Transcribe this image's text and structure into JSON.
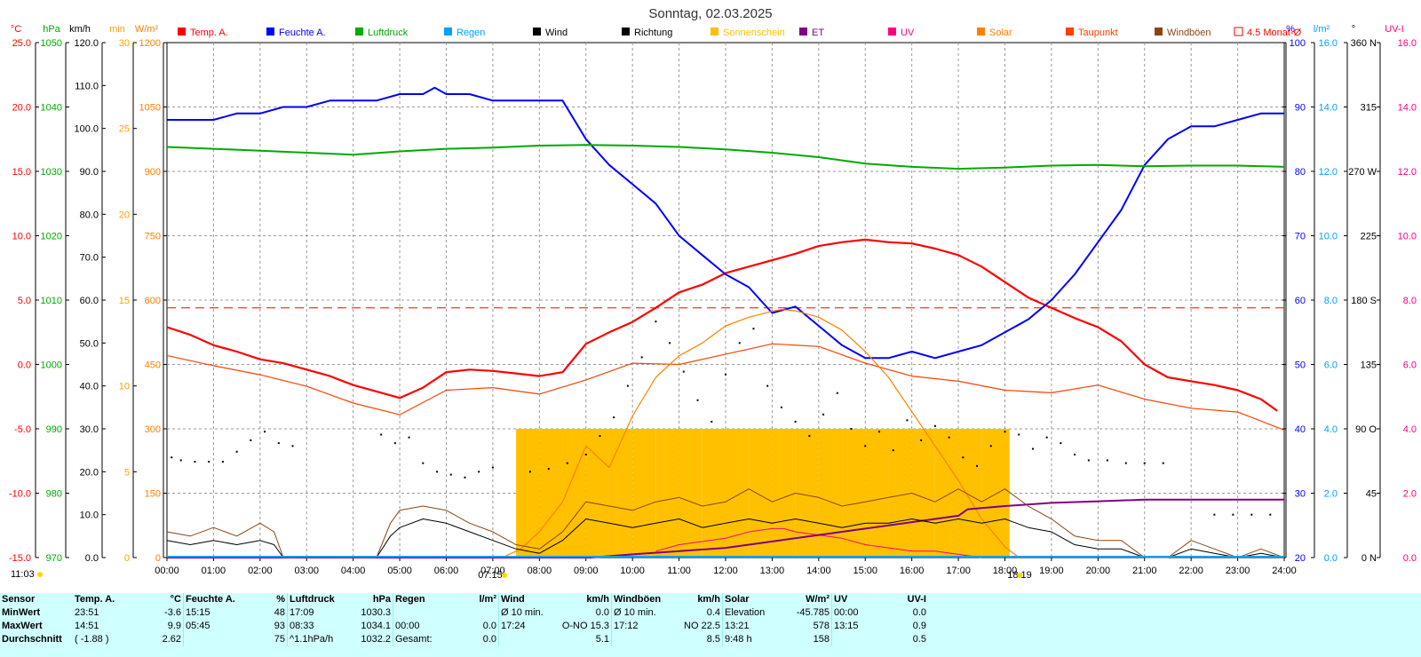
{
  "title": "Sonntag, 02.03.2025",
  "unit_headers": {
    "temp": "°C",
    "pressure": "hPa",
    "wind": "km/h",
    "sun_min": "min",
    "solar": "W/m²",
    "humidity": "%",
    "rain": "l/m²",
    "direction": "°",
    "uv": "UV-I"
  },
  "legend": [
    {
      "label": "Temp. A.",
      "color": "#ff0000"
    },
    {
      "label": "Feuchte A.",
      "color": "#0000ff"
    },
    {
      "label": "Luftdruck",
      "color": "#00aa00"
    },
    {
      "label": "Regen",
      "color": "#00a0ff"
    },
    {
      "label": "Wind",
      "color": "#000000"
    },
    {
      "label": "Richtung",
      "color": "#000000"
    },
    {
      "label": "Sonnenschein",
      "color": "#ffbf00"
    },
    {
      "label": "ET",
      "color": "#800080"
    },
    {
      "label": "UV",
      "color": "#ff0080"
    },
    {
      "label": "Solar",
      "color": "#ff8000"
    },
    {
      "label": "Taupunkt",
      "color": "#ff4000"
    },
    {
      "label": "Windböen",
      "color": "#8b4513"
    },
    {
      "label": "4.5 Monat-Ø",
      "color": "#ff0000"
    }
  ],
  "axes": {
    "temp": {
      "color": "#ff0000",
      "ticks": [
        "25.0",
        "20.0",
        "15.0",
        "10.0",
        "5.0",
        "0.0",
        "-5.0",
        "-10.0",
        "-15.0"
      ]
    },
    "pressure": {
      "color": "#00aa00",
      "ticks": [
        "1050",
        "1040",
        "1030",
        "1020",
        "1010",
        "1000",
        "990",
        "980",
        "970"
      ]
    },
    "wind": {
      "color": "#000000",
      "ticks": [
        "120.0",
        "110.0",
        "100.0",
        "90.0",
        "80.0",
        "70.0",
        "60.0",
        "50.0",
        "40.0",
        "30.0",
        "20.0",
        "10.0",
        "0.0"
      ]
    },
    "sun_min": {
      "color": "#ffa000",
      "ticks": [
        "30",
        "25",
        "20",
        "15",
        "10",
        "5",
        "0"
      ]
    },
    "solar": {
      "color": "#ff8000",
      "ticks": [
        "1200",
        "1050",
        "900",
        "750",
        "600",
        "450",
        "300",
        "150",
        "0"
      ]
    },
    "humidity": {
      "color": "#0000ff",
      "ticks": [
        "100",
        "90",
        "80",
        "70",
        "60",
        "50",
        "40",
        "30",
        "20"
      ]
    },
    "rain": {
      "color": "#00a0ff",
      "ticks": [
        "16.0",
        "14.0",
        "12.0",
        "10.0",
        "8.0",
        "6.0",
        "4.0",
        "2.0",
        "0.0"
      ]
    },
    "direction": {
      "color": "#000000",
      "ticks": [
        "360 N",
        "315",
        "270 W",
        "225",
        "180 S",
        "135",
        "90 O",
        "45",
        "0 N"
      ]
    },
    "uv": {
      "color": "#ff0080",
      "ticks": [
        "16.0",
        "14.0",
        "12.0",
        "10.0",
        "8.0",
        "6.0",
        "4.0",
        "2.0",
        "0.0"
      ]
    }
  },
  "x_ticks": [
    "00:00",
    "01:00",
    "02:00",
    "03:00",
    "04:00",
    "05:00",
    "06:00",
    "07:00",
    "08:00",
    "09:00",
    "10:00",
    "11:00",
    "12:00",
    "13:00",
    "14:00",
    "15:00",
    "16:00",
    "17:00",
    "18:00",
    "19:00",
    "20:00",
    "21:00",
    "22:00",
    "23:00",
    "24:00"
  ],
  "time_markers": {
    "now": "11:03",
    "sunrise": "07:15",
    "sunset": "18:19"
  },
  "chart_data": {
    "type": "line",
    "title": "Sonntag, 02.03.2025",
    "x_unit": "hours",
    "xlim": [
      0,
      24
    ],
    "series": [
      {
        "name": "Temp. A.",
        "axis": "temp",
        "color": "#ff0000",
        "x": [
          0,
          0.5,
          1,
          1.5,
          2,
          2.5,
          3,
          3.5,
          4,
          4.5,
          5,
          5.5,
          6,
          6.5,
          7,
          7.5,
          8,
          8.5,
          9,
          9.5,
          10,
          10.5,
          11,
          11.5,
          12,
          12.5,
          13,
          13.5,
          14,
          14.5,
          15,
          15.5,
          16,
          16.5,
          17,
          17.5,
          18,
          18.5,
          19,
          19.5,
          20,
          20.5,
          21,
          21.5,
          22,
          22.5,
          23,
          23.5,
          23.85
        ],
        "y": [
          2.9,
          2.3,
          1.5,
          1.0,
          0.4,
          0.1,
          -0.4,
          -0.9,
          -1.6,
          -2.1,
          -2.6,
          -1.8,
          -0.6,
          -0.4,
          -0.5,
          -0.7,
          -0.9,
          -0.6,
          1.6,
          2.5,
          3.3,
          4.4,
          5.6,
          6.2,
          7.1,
          7.6,
          8.1,
          8.6,
          9.2,
          9.5,
          9.7,
          9.5,
          9.4,
          9.0,
          8.5,
          7.6,
          6.4,
          5.2,
          4.4,
          3.6,
          2.9,
          1.8,
          0.0,
          -1.0,
          -1.3,
          -1.6,
          -2.0,
          -2.7,
          -3.6
        ]
      },
      {
        "name": "Feuchte A.",
        "axis": "humidity",
        "color": "#0000ff",
        "x": [
          0,
          0.5,
          1,
          1.5,
          2,
          2.5,
          3,
          3.5,
          4,
          4.5,
          5,
          5.5,
          5.75,
          6,
          6.5,
          7,
          7.5,
          8,
          8.5,
          9,
          9.5,
          10,
          10.5,
          11,
          11.5,
          12,
          12.5,
          13,
          13.5,
          14,
          14.5,
          15,
          15.5,
          16,
          16.5,
          17,
          17.5,
          18,
          18.5,
          19,
          19.5,
          20,
          20.5,
          21,
          21.5,
          22,
          22.5,
          23,
          23.5,
          24
        ],
        "y": [
          88,
          88,
          88,
          89,
          89,
          90,
          90,
          91,
          91,
          91,
          92,
          92,
          93,
          92,
          92,
          91,
          91,
          91,
          91,
          85,
          81,
          78,
          75,
          70,
          67,
          64,
          62,
          58,
          59,
          56,
          53,
          51,
          51,
          52,
          51,
          52,
          53,
          55,
          57,
          60,
          64,
          69,
          74,
          81,
          85,
          87,
          87,
          88,
          89,
          89
        ]
      },
      {
        "name": "Luftdruck",
        "axis": "pressure",
        "color": "#00aa00",
        "x": [
          0,
          1,
          2,
          3,
          4,
          5,
          6,
          7,
          8,
          9,
          10,
          11,
          12,
          13,
          14,
          15,
          16,
          17,
          18,
          19,
          20,
          21,
          22,
          23,
          24
        ],
        "y": [
          1033.8,
          1033.5,
          1033.2,
          1032.9,
          1032.6,
          1033.1,
          1033.5,
          1033.7,
          1034.0,
          1034.1,
          1034.0,
          1033.8,
          1033.4,
          1032.9,
          1032.2,
          1031.2,
          1030.7,
          1030.4,
          1030.6,
          1030.9,
          1031.0,
          1030.8,
          1030.9,
          1030.9,
          1030.7
        ]
      },
      {
        "name": "Taupunkt",
        "axis": "temp",
        "color": "#ff4000",
        "x": [
          0,
          1,
          2,
          3,
          4,
          5,
          6,
          7,
          8,
          9,
          10,
          11,
          12,
          13,
          14,
          15,
          16,
          17,
          18,
          19,
          20,
          21,
          22,
          23,
          24
        ],
        "y": [
          0.7,
          -0.1,
          -0.8,
          -1.7,
          -3.0,
          -3.9,
          -2.0,
          -1.8,
          -2.3,
          -1.2,
          0.1,
          0.0,
          0.8,
          1.6,
          1.4,
          0.1,
          -0.9,
          -1.3,
          -2.0,
          -2.2,
          -1.6,
          -2.7,
          -3.4,
          -3.7,
          -5.1
        ]
      },
      {
        "name": "Solar",
        "axis": "solar",
        "color": "#ff8000",
        "x": [
          7.2,
          7.6,
          8,
          8.5,
          9,
          9.5,
          10,
          10.5,
          11,
          11.5,
          12,
          12.5,
          13,
          13.2,
          13.5,
          14,
          14.5,
          15,
          15.5,
          16,
          16.5,
          17,
          17.5,
          18,
          18.3
        ],
        "y": [
          0,
          20,
          60,
          130,
          260,
          210,
          330,
          420,
          470,
          500,
          540,
          560,
          574,
          578,
          575,
          560,
          530,
          480,
          420,
          340,
          260,
          180,
          90,
          25,
          0
        ]
      },
      {
        "name": "UV",
        "axis": "uv",
        "color": "#ff0080",
        "x": [
          10.5,
          11,
          11.5,
          12,
          12.5,
          13,
          13.25,
          13.5,
          14,
          14.5,
          15,
          15.5,
          16,
          16.5,
          17,
          17.5
        ],
        "y": [
          0.2,
          0.4,
          0.5,
          0.6,
          0.8,
          0.9,
          0.9,
          0.8,
          0.7,
          0.6,
          0.4,
          0.3,
          0.2,
          0.2,
          0.1,
          0.0
        ]
      },
      {
        "name": "ET",
        "axis": "uv",
        "color": "#800080",
        "x": [
          0,
          9.1,
          10,
          11,
          12,
          13,
          14,
          15,
          16,
          17,
          17.2,
          18,
          19,
          20,
          21,
          24
        ],
        "y": [
          0,
          0,
          0.1,
          0.2,
          0.3,
          0.5,
          0.7,
          0.9,
          1.1,
          1.3,
          1.5,
          1.6,
          1.7,
          1.75,
          1.8,
          1.8
        ]
      },
      {
        "name": "Wind",
        "axis": "wind",
        "color": "#000000",
        "x": [
          0,
          0.5,
          1,
          1.5,
          2,
          2.3,
          2.5,
          4.5,
          4.8,
          5,
          5.5,
          6,
          6.5,
          7,
          7.5,
          8,
          8.5,
          9,
          9.5,
          10,
          10.5,
          11,
          11.5,
          12,
          12.5,
          13,
          13.5,
          14,
          14.5,
          15,
          15.5,
          16,
          16.5,
          17,
          17.5,
          18,
          18.5,
          19,
          19.5,
          20,
          20.5,
          21,
          21.5,
          22,
          22.5,
          23,
          23.5,
          24
        ],
        "y": [
          4,
          3,
          4,
          3,
          4,
          3,
          0,
          0,
          5,
          7,
          9,
          8,
          6,
          4,
          2,
          1,
          4,
          9,
          8,
          7,
          8,
          9,
          7,
          8,
          9,
          8,
          9,
          8,
          7,
          8,
          8,
          9,
          8,
          9,
          8,
          9,
          7,
          6,
          3,
          2,
          2,
          0,
          0,
          2,
          1,
          0,
          1,
          0
        ]
      },
      {
        "name": "Windböen",
        "axis": "wind",
        "color": "#8b4513",
        "x": [
          0,
          0.5,
          1,
          1.5,
          2,
          2.3,
          2.5,
          4.5,
          4.8,
          5,
          5.5,
          6,
          6.5,
          7,
          7.5,
          8,
          8.5,
          9,
          9.5,
          10,
          10.5,
          11,
          11.5,
          12,
          12.5,
          13,
          13.5,
          14,
          14.5,
          15,
          15.5,
          16,
          16.5,
          17,
          17.5,
          18,
          18.5,
          19,
          19.5,
          20,
          20.5,
          21,
          21.5,
          22,
          22.5,
          23,
          23.5,
          24
        ],
        "y": [
          6,
          5,
          7,
          5,
          8,
          6,
          0,
          0,
          8,
          11,
          12,
          11,
          8,
          6,
          3,
          2,
          6,
          13,
          12,
          11,
          13,
          14,
          12,
          13,
          16,
          13,
          15,
          14,
          12,
          13,
          14,
          15,
          13,
          16,
          13,
          16,
          12,
          9,
          5,
          4,
          4,
          0,
          0,
          4,
          2,
          0,
          2,
          0
        ]
      },
      {
        "name": "Sonnenschein",
        "axis": "sun_min",
        "color": "#ffbf00",
        "x": [
          7.5,
          8,
          8.5,
          9,
          9.5,
          10,
          10.5,
          11,
          11.5,
          12,
          12.5,
          13,
          13.5,
          14,
          14.5,
          15,
          15.5,
          16,
          16.5,
          17,
          17.5,
          18,
          18.1
        ],
        "y": [
          7.5,
          7.5,
          7.5,
          7.5,
          7.5,
          7.5,
          7.5,
          7.5,
          7.5,
          7.5,
          7.5,
          7.5,
          7.5,
          7.5,
          7.5,
          7.5,
          7.5,
          7.5,
          7.5,
          7.5,
          7.5,
          7.5,
          0
        ]
      },
      {
        "name": "Richtung",
        "axis": "direction",
        "color": "#000000",
        "x": [
          0.1,
          0.3,
          0.6,
          0.9,
          1.2,
          1.5,
          1.8,
          2.1,
          2.4,
          2.7,
          4.6,
          4.9,
          5.2,
          5.5,
          5.8,
          6.1,
          6.4,
          6.7,
          7.0,
          7.8,
          8.2,
          8.6,
          9.0,
          9.3,
          9.6,
          9.9,
          10.2,
          10.5,
          10.8,
          11.1,
          11.4,
          11.7,
          12.0,
          12.3,
          12.6,
          12.9,
          13.2,
          13.5,
          13.8,
          14.1,
          14.4,
          14.7,
          15.0,
          15.3,
          15.6,
          15.9,
          16.2,
          16.5,
          16.8,
          17.1,
          17.4,
          17.7,
          18.0,
          18.3,
          18.6,
          18.9,
          19.2,
          19.5,
          19.8,
          20.2,
          20.6,
          21.0,
          21.4,
          22.5,
          22.9,
          23.3,
          23.7
        ],
        "y": [
          70,
          68,
          67,
          67,
          67,
          74,
          82,
          88,
          80,
          78,
          86,
          80,
          84,
          66,
          60,
          58,
          56,
          60,
          63,
          60,
          62,
          66,
          72,
          85,
          98,
          120,
          140,
          165,
          150,
          130,
          110,
          95,
          128,
          150,
          160,
          120,
          105,
          95,
          85,
          100,
          115,
          90,
          78,
          88,
          75,
          96,
          82,
          92,
          84,
          70,
          64,
          78,
          88,
          86,
          76,
          84,
          80,
          72,
          68,
          68,
          66,
          66,
          66,
          30,
          30,
          30,
          30
        ]
      }
    ],
    "reference_lines": [
      {
        "name": "4.5 Monat-Ø",
        "axis": "temp",
        "value": 4.4,
        "color": "#ff0000",
        "style": "dashed"
      }
    ]
  },
  "stats": {
    "headers": {
      "sensor": "Sensor",
      "temp": "Temp. A.",
      "temp_unit": "°C",
      "hum": "Feuchte A.",
      "hum_unit": "%",
      "press": "Luftdruck",
      "press_unit": "hPa",
      "rain": "Regen",
      "rain_unit": "l/m²",
      "wind": "Wind",
      "wind_unit": "km/h",
      "gust": "Windböen",
      "gust_unit": "km/h",
      "solar": "Solar",
      "solar_unit": "W/m²",
      "uv": "UV",
      "uv_unit": "UV-I"
    },
    "rows": [
      {
        "label": "MinWert",
        "temp_t": "23:51",
        "temp_v": "-3.6",
        "hum_t": "15:15",
        "hum_v": "48",
        "press_t": "17:09",
        "press_v": "1030.3",
        "rain_t": "",
        "rain_v": "",
        "wind_t": "Ø 10 min.",
        "wind_v": "0.0",
        "gust_t": "Ø 10 min.",
        "gust_v": "0.4",
        "solar_t": "Elevation",
        "solar_v": "-45.785",
        "uv_t": "00:00",
        "uv_v": "0.0"
      },
      {
        "label": "MaxWert",
        "temp_t": "14:51",
        "temp_v": "9.9",
        "hum_t": "05:45",
        "hum_v": "93",
        "press_t": "08:33",
        "press_v": "1034.1",
        "rain_t": "00:00",
        "rain_v": "0.0",
        "wind_t": "17:24",
        "wind_v": "O-NO 15.3",
        "gust_t": "17:12",
        "gust_v": "NO 22.5",
        "solar_t": "13:21",
        "solar_v": "578",
        "uv_t": "13:15",
        "uv_v": "0.9"
      },
      {
        "label": "Durchschnitt",
        "temp_t": "( -1.88 )",
        "temp_v": "2.62",
        "hum_t": "",
        "hum_v": "75",
        "press_t": "^1.1hPa/h",
        "press_v": "1032.2",
        "rain_t": "Gesamt:",
        "rain_v": "0.0",
        "wind_t": "",
        "wind_v": "5.1",
        "gust_t": "",
        "gust_v": "8.5",
        "solar_t": "9:48 h",
        "solar_v": "158",
        "uv_t": "",
        "uv_v": "0.5"
      }
    ]
  }
}
